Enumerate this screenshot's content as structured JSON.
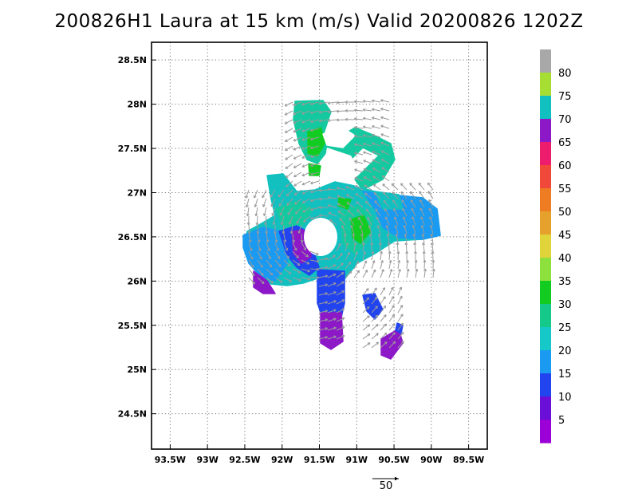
{
  "title": "200826H1 Laura at 15 km (m/s) Valid 20200826  1202Z",
  "map": {
    "lat_ticks": [
      "28.5N",
      "28N",
      "27.5N",
      "27N",
      "26.5N",
      "26N",
      "25.5N",
      "25N",
      "24.5N"
    ],
    "lat_values": [
      28.5,
      28.0,
      27.5,
      27.0,
      26.5,
      26.0,
      25.5,
      25.0,
      24.5
    ],
    "lon_ticks": [
      "93.5W",
      "93W",
      "92.5W",
      "92W",
      "91.5W",
      "91W",
      "90.5W",
      "90W",
      "89.5W"
    ],
    "lon_values": [
      -93.5,
      -93.0,
      -92.5,
      -92.0,
      -91.5,
      -91.0,
      -90.5,
      -90.0,
      -89.5
    ],
    "lat_range": [
      24.1,
      28.7
    ],
    "lon_range": [
      -93.75,
      -89.25
    ],
    "grid": "dotted"
  },
  "colorbar": {
    "labels": [
      "5",
      "10",
      "15",
      "20",
      "25",
      "30",
      "35",
      "40",
      "45",
      "50",
      "55",
      "60",
      "65",
      "70",
      "75",
      "80"
    ],
    "colors": [
      "#9b00d6",
      "#6a0fd8",
      "#2244ee",
      "#1a9af0",
      "#16c8c8",
      "#14c98a",
      "#12cc22",
      "#8ee03c",
      "#e0d43a",
      "#e6a02c",
      "#ee7c22",
      "#f0493a",
      "#ee1c6c",
      "#8c18c8",
      "#12c0c0",
      "#a6de34",
      "#a8a8a8"
    ]
  },
  "reference_vector": {
    "label": "50"
  }
}
